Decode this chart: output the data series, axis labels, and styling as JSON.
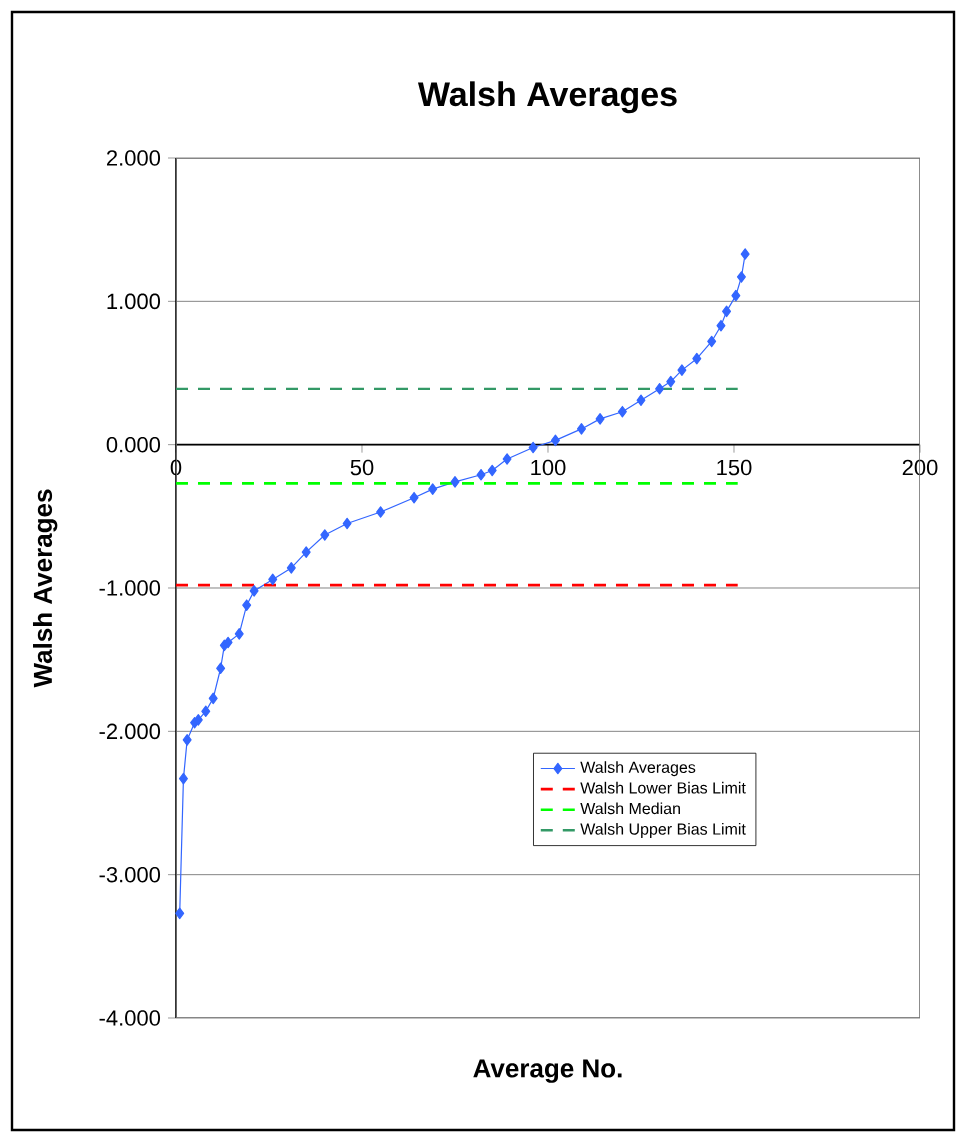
{
  "chart_data": {
    "type": "line",
    "title": "Walsh Averages",
    "xlabel": "Average No.",
    "ylabel": "Walsh Averages",
    "xlim": [
      0,
      200
    ],
    "xticks": [
      0,
      50,
      100,
      150,
      200
    ],
    "ylim": [
      -4,
      2
    ],
    "yticks": [
      {
        "value": 2,
        "label": "2.000"
      },
      {
        "value": 1,
        "label": "1.000"
      },
      {
        "value": 0,
        "label": "0.000"
      },
      {
        "value": -1,
        "label": "-1.000"
      },
      {
        "value": -2,
        "label": "-2.000"
      },
      {
        "value": -3,
        "label": "-3.000"
      },
      {
        "value": -4,
        "label": "-4.000"
      }
    ],
    "grid": "y",
    "legend": "bottom right",
    "series": [
      {
        "name": "Walsh Averages",
        "color": "#3366ff",
        "marker": "diamond",
        "line_style": "solid",
        "x": [
          1,
          2,
          3,
          5,
          6,
          8,
          10,
          12,
          13,
          14,
          17,
          19,
          21,
          26,
          31,
          35,
          40,
          46,
          55,
          64,
          69,
          75,
          82,
          85,
          89,
          96,
          102,
          109,
          114,
          120,
          125,
          130,
          133,
          136,
          140,
          144,
          146.5,
          148,
          150.5,
          152,
          153
        ],
        "values": [
          -3.27,
          -2.33,
          -2.06,
          -1.94,
          -1.92,
          -1.86,
          -1.77,
          -1.56,
          -1.4,
          -1.38,
          -1.32,
          -1.12,
          -1.02,
          -0.94,
          -0.86,
          -0.75,
          -0.63,
          -0.55,
          -0.47,
          -0.37,
          -0.31,
          -0.26,
          -0.21,
          -0.18,
          -0.1,
          -0.02,
          0.03,
          0.11,
          0.18,
          0.23,
          0.31,
          0.39,
          0.44,
          0.52,
          0.6,
          0.72,
          0.83,
          0.93,
          1.04,
          1.17,
          1.33
        ]
      },
      {
        "name": "Walsh Lower Bias Limit",
        "color": "#ff0000",
        "marker": "none",
        "line_style": "dashed",
        "x": [
          0,
          151
        ],
        "values": [
          -0.98,
          -0.98
        ]
      },
      {
        "name": "Walsh Median",
        "color": "#00ff00",
        "marker": "none",
        "line_style": "dashed",
        "x": [
          0,
          151
        ],
        "values": [
          -0.27,
          -0.27
        ]
      },
      {
        "name": "Walsh Upper Bias Limit",
        "color": "#339966",
        "marker": "none",
        "line_style": "dashed",
        "x": [
          0,
          151
        ],
        "values": [
          0.39,
          0.39
        ]
      }
    ]
  }
}
